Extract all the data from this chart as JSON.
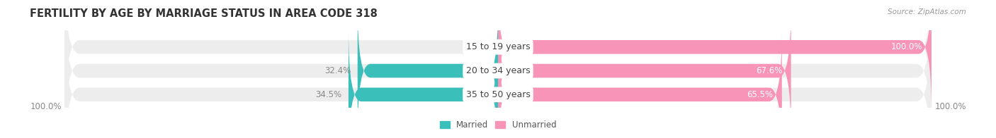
{
  "title": "FERTILITY BY AGE BY MARRIAGE STATUS IN AREA CODE 318",
  "source": "Source: ZipAtlas.com",
  "categories": [
    "15 to 19 years",
    "20 to 34 years",
    "35 to 50 years"
  ],
  "married": [
    0.0,
    32.4,
    34.5
  ],
  "unmarried": [
    100.0,
    67.6,
    65.5
  ],
  "married_color": "#3bbfba",
  "unmarried_color": "#f794b8",
  "bar_bg_color": "#ededee",
  "bar_height": 0.58,
  "title_fontsize": 10.5,
  "label_fontsize": 8.5,
  "cat_fontsize": 9.0,
  "tick_fontsize": 8.5,
  "bg_color": "#ffffff",
  "left_axis_label": "100.0%",
  "right_axis_label": "100.0%",
  "pct_label_color_inside": "#ffffff",
  "pct_label_color_outside": "#888888"
}
